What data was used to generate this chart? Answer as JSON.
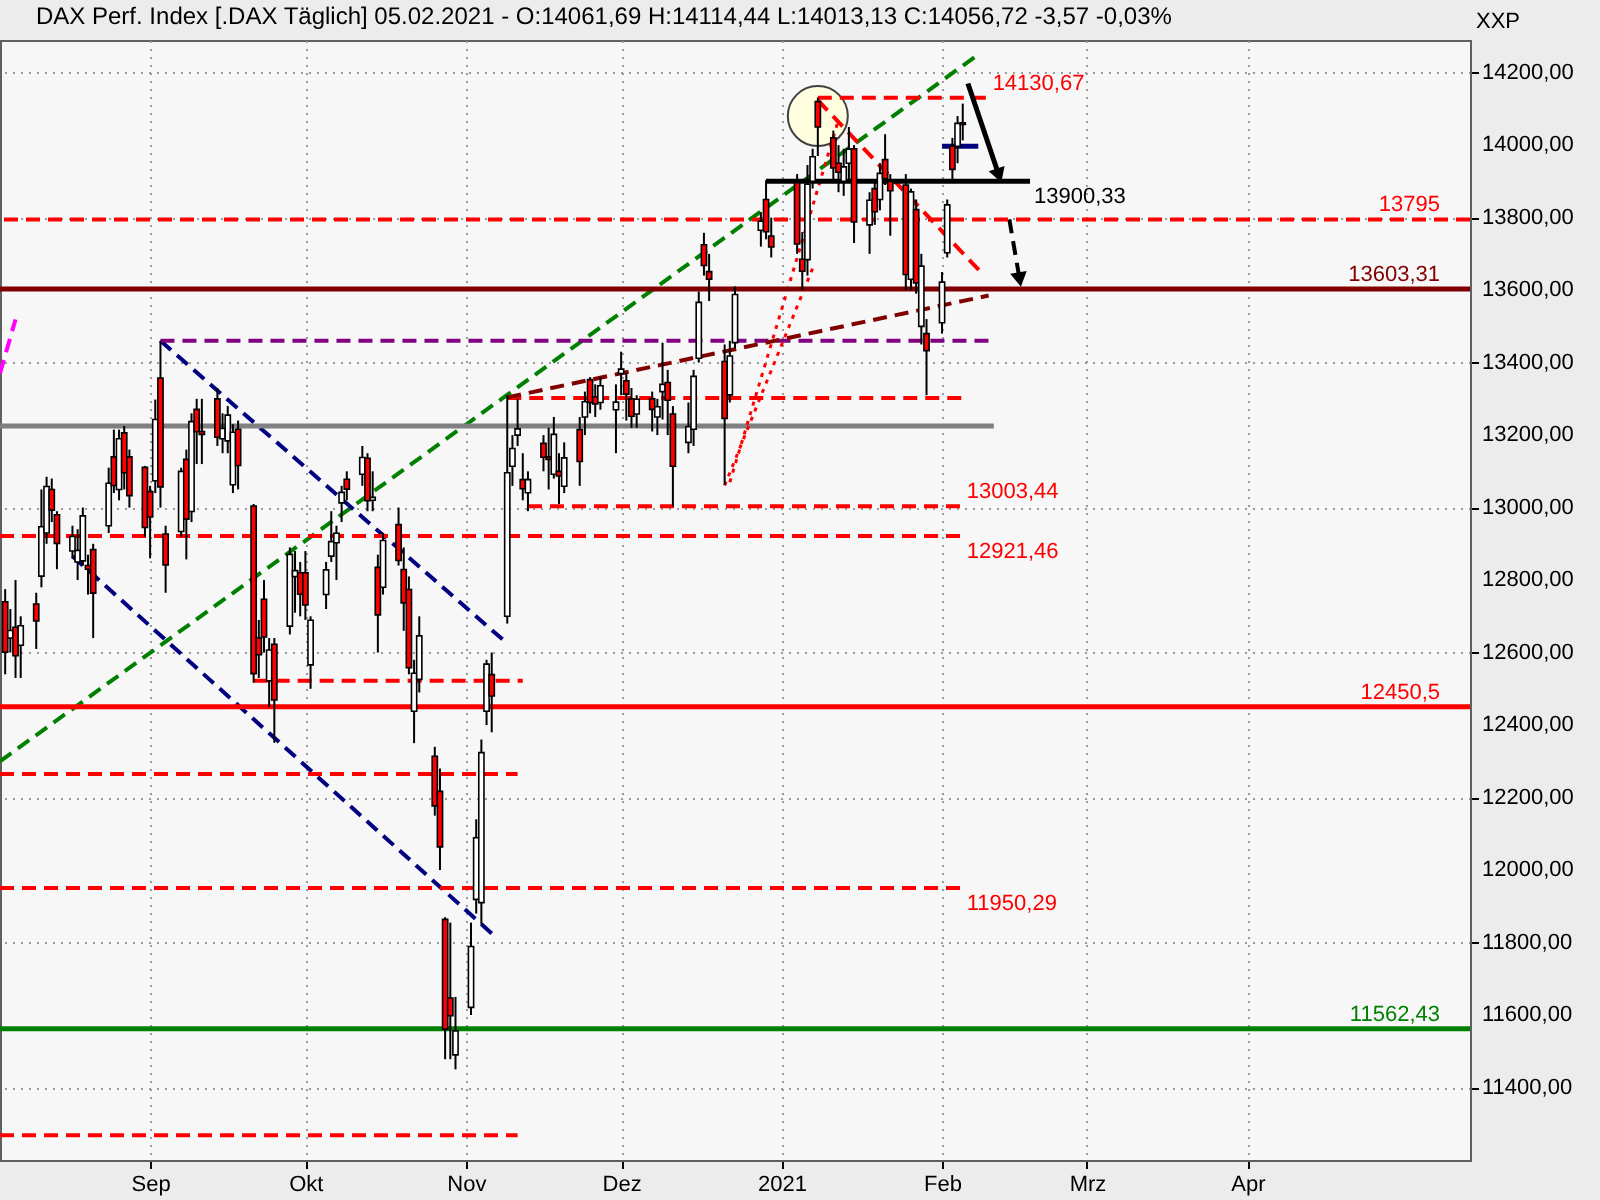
{
  "chart_data": {
    "type": "candlestick",
    "title": "DAX Perf. Index [.DAX Täglich] 05.02.2021 - O:14061,69 H:14114,44 L:14013,13 C:14056,72 -3,57 -0,03%",
    "ylabel": "XXP",
    "x": [
      "2020-08-04",
      "2020-08-05",
      "2020-08-06",
      "2020-08-07",
      "2020-08-10",
      "2020-08-11",
      "2020-08-12",
      "2020-08-13",
      "2020-08-14",
      "2020-08-17",
      "2020-08-18",
      "2020-08-19",
      "2020-08-20",
      "2020-08-21",
      "2020-08-24",
      "2020-08-25",
      "2020-08-26",
      "2020-08-27",
      "2020-08-28",
      "2020-08-31",
      "2020-09-01",
      "2020-09-02",
      "2020-09-03",
      "2020-09-04",
      "2020-09-07",
      "2020-09-08",
      "2020-09-09",
      "2020-09-10",
      "2020-09-11",
      "2020-09-14",
      "2020-09-15",
      "2020-09-16",
      "2020-09-17",
      "2020-09-18",
      "2020-09-21",
      "2020-09-22",
      "2020-09-23",
      "2020-09-24",
      "2020-09-25",
      "2020-09-28",
      "2020-09-29",
      "2020-09-30",
      "2020-10-01",
      "2020-10-02",
      "2020-10-05",
      "2020-10-06",
      "2020-10-07",
      "2020-10-08",
      "2020-10-09",
      "2020-10-12",
      "2020-10-13",
      "2020-10-14",
      "2020-10-15",
      "2020-10-16",
      "2020-10-19",
      "2020-10-20",
      "2020-10-21",
      "2020-10-22",
      "2020-10-23",
      "2020-10-26",
      "2020-10-27",
      "2020-10-28",
      "2020-10-29",
      "2020-10-30",
      "2020-11-02",
      "2020-11-03",
      "2020-11-04",
      "2020-11-05",
      "2020-11-06",
      "2020-11-09",
      "2020-11-10",
      "2020-11-11",
      "2020-11-12",
      "2020-11-13",
      "2020-11-16",
      "2020-11-17",
      "2020-11-18",
      "2020-11-19",
      "2020-11-20",
      "2020-11-23",
      "2020-11-24",
      "2020-11-25",
      "2020-11-26",
      "2020-11-27",
      "2020-11-30",
      "2020-12-01",
      "2020-12-02",
      "2020-12-03",
      "2020-12-04",
      "2020-12-07",
      "2020-12-08",
      "2020-12-09",
      "2020-12-10",
      "2020-12-11",
      "2020-12-14",
      "2020-12-15",
      "2020-12-16",
      "2020-12-17",
      "2020-12-18",
      "2020-12-21",
      "2020-12-22",
      "2020-12-23",
      "2020-12-28",
      "2020-12-29",
      "2020-12-30",
      "2021-01-04",
      "2021-01-05",
      "2021-01-06",
      "2021-01-07",
      "2021-01-08",
      "2021-01-11",
      "2021-01-12",
      "2021-01-13",
      "2021-01-14",
      "2021-01-15",
      "2021-01-18",
      "2021-01-19",
      "2021-01-20",
      "2021-01-21",
      "2021-01-22",
      "2021-01-25",
      "2021-01-26",
      "2021-01-27",
      "2021-01-28",
      "2021-01-29",
      "2021-02-01",
      "2021-02-02",
      "2021-02-03",
      "2021-02-04",
      "2021-02-05"
    ],
    "ohlc": [
      [
        12740,
        12775,
        12540,
        12601
      ],
      [
        12640,
        12720,
        12600,
        12661
      ],
      [
        12670,
        12800,
        12530,
        12591
      ],
      [
        12620,
        12700,
        12530,
        12674
      ],
      [
        12734,
        12765,
        12610,
        12687
      ],
      [
        12811,
        13050,
        12780,
        12947
      ],
      [
        12930,
        13085,
        12900,
        13058
      ],
      [
        13050,
        13080,
        12960,
        12993
      ],
      [
        12980,
        12990,
        12830,
        12901
      ],
      [
        12880,
        12950,
        12860,
        12920
      ],
      [
        12850,
        12940,
        12800,
        12882
      ],
      [
        12853,
        13000,
        12840,
        12977
      ],
      [
        12840,
        12870,
        12760,
        12830
      ],
      [
        12884,
        12900,
        12640,
        12764
      ],
      [
        12950,
        13110,
        12930,
        13067
      ],
      [
        13140,
        13215,
        13040,
        13061
      ],
      [
        13050,
        13215,
        13020,
        13190
      ],
      [
        13206,
        13225,
        13050,
        13096
      ],
      [
        13140,
        13160,
        13000,
        13033
      ],
      [
        13111,
        13115,
        12920,
        12945
      ],
      [
        13044,
        13060,
        12860,
        12974
      ],
      [
        13074,
        13298,
        13040,
        13243
      ],
      [
        13357,
        13460,
        13000,
        13057
      ],
      [
        12927,
        12950,
        12765,
        12842
      ],
      [
        12934,
        13110,
        12920,
        13100
      ],
      [
        13133,
        13160,
        12857,
        12968
      ],
      [
        12989,
        13260,
        12960,
        13237
      ],
      [
        13271,
        13300,
        13120,
        13209
      ],
      [
        13210,
        13300,
        13120,
        13202
      ],
      [
        13300,
        13330,
        13170,
        13194
      ],
      [
        13190,
        13260,
        13150,
        13218
      ],
      [
        13184,
        13280,
        13150,
        13255
      ],
      [
        13063,
        13230,
        13040,
        13208
      ],
      [
        13216,
        13240,
        13050,
        13116
      ],
      [
        13004,
        13010,
        12517,
        12542
      ],
      [
        12640,
        12690,
        12530,
        12594
      ],
      [
        12747,
        12800,
        12600,
        12643
      ],
      [
        12522,
        12640,
        12450,
        12607
      ],
      [
        12623,
        12640,
        12351,
        12469
      ],
      [
        12673,
        12890,
        12650,
        12871
      ],
      [
        12810,
        12880,
        12710,
        12826
      ],
      [
        12820,
        12850,
        12700,
        12761
      ],
      [
        12820,
        12880,
        12690,
        12731
      ],
      [
        12566,
        12700,
        12500,
        12689
      ],
      [
        12760,
        12850,
        12720,
        12828
      ],
      [
        12866,
        12990,
        12850,
        12906
      ],
      [
        12903,
        12950,
        12800,
        12929
      ],
      [
        13013,
        13060,
        12960,
        13042
      ],
      [
        13078,
        13100,
        13020,
        13051
      ],
      [
        13092,
        13170,
        13060,
        13138
      ],
      [
        13136,
        13150,
        12990,
        13019
      ],
      [
        13020,
        13100,
        12990,
        13028
      ],
      [
        12835,
        12870,
        12600,
        12704
      ],
      [
        12780,
        12930,
        12760,
        12909
      ],
      [
        12953,
        13000,
        12840,
        12854
      ],
      [
        12829,
        12890,
        12660,
        12737
      ],
      [
        12774,
        12810,
        12540,
        12558
      ],
      [
        12438,
        12580,
        12350,
        12543
      ],
      [
        12526,
        12700,
        12490,
        12646
      ],
      [
        12314,
        12340,
        12150,
        12177
      ],
      [
        12217,
        12280,
        12000,
        12064
      ],
      [
        11864,
        11870,
        11478,
        11561
      ],
      [
        11647,
        11855,
        11478,
        11598
      ],
      [
        11490,
        11650,
        11450,
        11556
      ],
      [
        11621,
        11855,
        11600,
        11789
      ],
      [
        11919,
        12140,
        11880,
        12089
      ],
      [
        11910,
        12360,
        11850,
        12324
      ],
      [
        12438,
        12580,
        12400,
        12568
      ],
      [
        12539,
        12600,
        12380,
        12480
      ],
      [
        12700,
        13309,
        12680,
        13096
      ],
      [
        13114,
        13200,
        13060,
        13163
      ],
      [
        13200,
        13300,
        13170,
        13217
      ],
      [
        13077,
        13150,
        13020,
        13052
      ],
      [
        13041,
        13100,
        12990,
        13077
      ],
      [
        13177,
        13200,
        13100,
        13139
      ],
      [
        13140,
        13220,
        13050,
        13133
      ],
      [
        13092,
        13250,
        13080,
        13202
      ],
      [
        13100,
        13150,
        13010,
        13087
      ],
      [
        13059,
        13180,
        13040,
        13137
      ],
      [
        13215,
        13250,
        13060,
        13127
      ],
      [
        13250,
        13320,
        13200,
        13292
      ],
      [
        13353,
        13360,
        13260,
        13290
      ],
      [
        13305,
        13340,
        13250,
        13286
      ],
      [
        13290,
        13360,
        13270,
        13336
      ],
      [
        13270,
        13340,
        13150,
        13291
      ],
      [
        13370,
        13430,
        13310,
        13382
      ],
      [
        13350,
        13370,
        13240,
        13313
      ],
      [
        13300,
        13330,
        13220,
        13252
      ],
      [
        13258,
        13310,
        13220,
        13299
      ],
      [
        13300,
        13320,
        13210,
        13271
      ],
      [
        13250,
        13300,
        13200,
        13278
      ],
      [
        13320,
        13455,
        13243,
        13340
      ],
      [
        13345,
        13380,
        13200,
        13296
      ],
      [
        13258,
        13280,
        13003,
        13114
      ],
      [
        13180,
        13290,
        13150,
        13223
      ],
      [
        13216,
        13380,
        13170,
        13362
      ],
      [
        13412,
        13596,
        13400,
        13566
      ],
      [
        13725,
        13758,
        13640,
        13668
      ],
      [
        13651,
        13700,
        13570,
        13630
      ],
      [
        13403,
        13450,
        13063,
        13246
      ],
      [
        13311,
        13460,
        13290,
        13418
      ],
      [
        13455,
        13610,
        13440,
        13588
      ],
      [
        13765,
        13815,
        13720,
        13790
      ],
      [
        13850,
        13903,
        13740,
        13761
      ],
      [
        13749,
        13800,
        13690,
        13719
      ],
      [
        13896,
        13920,
        13700,
        13727
      ],
      [
        13685,
        13760,
        13600,
        13652
      ],
      [
        13684,
        13945,
        13640,
        13892
      ],
      [
        13900,
        13990,
        13880,
        13968
      ],
      [
        14120,
        14131,
        13970,
        14050
      ],
      [
        14020,
        14040,
        13900,
        13937
      ],
      [
        13950,
        14000,
        13870,
        13925
      ],
      [
        13900,
        13990,
        13860,
        13940
      ],
      [
        13950,
        14050,
        13900,
        13989
      ],
      [
        13990,
        14000,
        13730,
        13788
      ],
      [
        13780,
        13870,
        13700,
        13848
      ],
      [
        13880,
        13900,
        13780,
        13816
      ],
      [
        13850,
        13950,
        13820,
        13922
      ],
      [
        13960,
        14030,
        13890,
        13907
      ],
      [
        13900,
        13920,
        13750,
        13874
      ],
      [
        13890,
        13920,
        13600,
        13643
      ],
      [
        13630,
        13880,
        13600,
        13871
      ],
      [
        13822,
        13850,
        13590,
        13620
      ],
      [
        13500,
        13700,
        13450,
        13666
      ],
      [
        13480,
        13520,
        13310,
        13433
      ],
      [
        13510,
        13650,
        13480,
        13622
      ],
      [
        13703,
        13850,
        13690,
        13835
      ],
      [
        13997,
        14020,
        13900,
        13933
      ],
      [
        13997,
        14080,
        13950,
        14060
      ],
      [
        14061.69,
        14114.44,
        14013.13,
        14056.72
      ]
    ],
    "colors": [
      "#ff0000",
      "#ffffff",
      "#ff0000",
      "#ffffff",
      "#ff0000",
      "#ffffff",
      "#ffffff",
      "#ff0000",
      "#ff0000",
      "#ffffff",
      "#ffffff",
      "#ffffff",
      "#ff0000",
      "#ff0000",
      "#ffffff",
      "#ff0000",
      "#ffffff",
      "#ff0000",
      "#ff0000",
      "#ff0000",
      "#ff0000",
      "#ffffff",
      "#ff0000",
      "#ff0000",
      "#ffffff",
      "#ff0000",
      "#ffffff",
      "#ff0000",
      "#ff0000",
      "#ff0000",
      "#ffffff",
      "#ffffff",
      "#ffffff",
      "#ff0000",
      "#ff0000",
      "#ff0000",
      "#ff0000",
      "#ffffff",
      "#ff0000",
      "#ffffff",
      "#ffffff",
      "#ff0000",
      "#ff0000",
      "#ffffff",
      "#ffffff",
      "#ffffff",
      "#ffffff",
      "#ffffff",
      "#ff0000",
      "#ffffff",
      "#ff0000",
      "#ffffff",
      "#ff0000",
      "#ffffff",
      "#ff0000",
      "#ff0000",
      "#ff0000",
      "#ffffff",
      "#ffffff",
      "#ff0000",
      "#ff0000",
      "#ff0000",
      "#ff0000",
      "#ffffff",
      "#ffffff",
      "#ffffff",
      "#ffffff",
      "#ffffff",
      "#ff0000",
      "#ffffff",
      "#ffffff",
      "#ffffff",
      "#ff0000",
      "#ffffff",
      "#ff0000",
      "#ff0000",
      "#ffffff",
      "#ff0000",
      "#ffffff",
      "#ff0000",
      "#ffffff",
      "#ff0000",
      "#ff0000",
      "#ffffff",
      "#ffffff",
      "#ffffff",
      "#ff0000",
      "#ff0000",
      "#ffffff",
      "#ff0000",
      "#ffffff",
      "#ffffff",
      "#ff0000",
      "#ff0000",
      "#ffffff",
      "#ffffff",
      "#ffffff",
      "#ff0000",
      "#ff0000",
      "#ff0000",
      "#ffffff",
      "#ffffff",
      "#ffffff",
      "#ff0000",
      "#ff0000",
      "#ff0000",
      "#ff0000",
      "#ffffff",
      "#ffffff",
      "#ff0000",
      "#ff0000",
      "#ff0000",
      "#ffffff",
      "#ffffff",
      "#ff0000",
      "#ffffff",
      "#ff0000",
      "#ffffff",
      "#ff0000",
      "#ff0000",
      "#ff0000",
      "#ffffff",
      "#ff0000",
      "#ffffff",
      "#ff0000",
      "#ffffff",
      "#ffffff",
      "#ff0000",
      "#ffffff",
      "#ff0000"
    ],
    "xlim": [
      "2020-08-03",
      "2021-05-14"
    ],
    "xticks": [
      {
        "value": "2020-09-01",
        "label": "Sep"
      },
      {
        "value": "2020-10-01",
        "label": "Okt"
      },
      {
        "value": "2020-11-01",
        "label": "Nov"
      },
      {
        "value": "2020-12-01",
        "label": "Dez"
      },
      {
        "value": "2021-01-01",
        "label": "2021"
      },
      {
        "value": "2021-02-01",
        "label": "Feb"
      },
      {
        "value": "2021-03-01",
        "label": "Mrz"
      },
      {
        "value": "2021-04-01",
        "label": "Apr"
      }
    ],
    "ylim": [
      11200,
      14290
    ],
    "yticks": [
      {
        "value": 11400,
        "label": "11400,00"
      },
      {
        "value": 11600,
        "label": "11600,00"
      },
      {
        "value": 11800,
        "label": "11800,00"
      },
      {
        "value": 12000,
        "label": "12000,00"
      },
      {
        "value": 12200,
        "label": "12200,00"
      },
      {
        "value": 12400,
        "label": "12400,00"
      },
      {
        "value": 12600,
        "label": "12600,00"
      },
      {
        "value": 12800,
        "label": "12800,00"
      },
      {
        "value": 13000,
        "label": "13000,00"
      },
      {
        "value": 13200,
        "label": "13200,00"
      },
      {
        "value": 13400,
        "label": "13400,00"
      },
      {
        "value": 13600,
        "label": "13600,00"
      },
      {
        "value": 13800,
        "label": "13800,00"
      },
      {
        "value": 14000,
        "label": "14000,00"
      },
      {
        "value": 14200,
        "label": "14200,00"
      }
    ],
    "grid": true,
    "ref_lines": [
      {
        "axis": "y",
        "value": 13795,
        "label": "13795",
        "color": "#ff0000",
        "line_style": "dashed"
      },
      {
        "axis": "y",
        "value": 13603.31,
        "label": "13603,31",
        "color": "#800000",
        "line_style": "solid"
      },
      {
        "axis": "y",
        "value": 12450.5,
        "label": "12450,5",
        "color": "#ff0000",
        "line_style": "solid"
      },
      {
        "axis": "y",
        "value": 11562.43,
        "label": "11562,43",
        "color": "#008000",
        "line_style": "solid"
      }
    ],
    "series": [
      {
        "type": "scatter",
        "x": [
          "2021-01-08"
        ],
        "values": [
          14080
        ],
        "color": "#ffffe0",
        "marker": "circle"
      },
      {
        "type": "line",
        "x": [
          "2020-08-03",
          "2021-02-08"
        ],
        "values": [
          12300,
          14250
        ],
        "color": "#008000",
        "line_style": "dashed"
      },
      {
        "type": "line",
        "x": [
          "2020-09-03",
          "2020-11-09"
        ],
        "values": [
          13460,
          12625
        ],
        "color": "#000080",
        "line_style": "dashed"
      },
      {
        "type": "line",
        "x": [
          "2020-08-17",
          "2020-11-06"
        ],
        "values": [
          12866,
          11825
        ],
        "color": "#000080",
        "line_style": "dashed"
      },
      {
        "type": "line",
        "x": [
          "2020-09-03",
          "2021-02-11"
        ],
        "values": [
          13460,
          13460
        ],
        "color": "#800080",
        "line_style": "dashed"
      },
      {
        "type": "line",
        "x": [
          "2020-08-03",
          "2021-02-11"
        ],
        "values": [
          13225,
          13225
        ],
        "color": "#808080",
        "line_style": "solid"
      },
      {
        "type": "line",
        "x": [
          "2020-11-09",
          "2021-02-05"
        ],
        "values": [
          13302,
          13302
        ],
        "color": "#ff0000",
        "line_style": "dashed"
      },
      {
        "type": "line",
        "x": [
          "2020-11-09",
          "2021-02-10"
        ],
        "values": [
          13304,
          13585
        ],
        "color": "#800000",
        "line_style": "dashed"
      },
      {
        "type": "line",
        "x": [
          "2020-09-21",
          "2020-11-12"
        ],
        "values": [
          12522,
          12522
        ],
        "color": "#ff0000",
        "line_style": "dashed"
      },
      {
        "type": "line",
        "x": [
          "2020-08-03",
          "2020-11-11"
        ],
        "values": [
          12265,
          12265
        ],
        "color": "#ff0000",
        "line_style": "dashed"
      },
      {
        "type": "line",
        "x": [
          "2020-08-03",
          "2020-11-11"
        ],
        "values": [
          11268,
          11268
        ],
        "color": "#ff0000",
        "line_style": "dashed"
      },
      {
        "type": "line",
        "x": [
          "2021-01-08",
          "2021-02-09"
        ],
        "values": [
          14124,
          13642
        ],
        "color": "#ff0000",
        "line_style": "dashed"
      },
      {
        "type": "line",
        "x": [
          "2020-12-21",
          "2021-01-07"
        ],
        "values": [
          13061,
          13660
        ],
        "color": "#ff0000",
        "line_style": "dotted"
      },
      {
        "type": "line",
        "x": [
          "2020-12-22",
          "2021-01-12"
        ],
        "values": [
          13070,
          14070
        ],
        "color": "#ff0000",
        "line_style": "dotted"
      },
      {
        "type": "line",
        "x": [
          "2020-08-03",
          "2020-08-06"
        ],
        "values": [
          13370,
          13519
        ],
        "color": "#ff00ff",
        "line_style": "dashed"
      },
      {
        "type": "line",
        "x": [
          "2021-02-01",
          "2021-02-08"
        ],
        "values": [
          13997,
          13997
        ],
        "color": "#000080",
        "line_style": "solid"
      },
      {
        "name": "14130,67",
        "type": "line",
        "x": [
          "2021-01-08",
          "2021-02-10"
        ],
        "values": [
          14130.67,
          14130.67
        ],
        "color": "#ff0000",
        "line_style": "dashed"
      },
      {
        "name": "13900,33",
        "type": "line",
        "x": [
          "2020-12-29",
          "2021-02-18"
        ],
        "values": [
          13900.33,
          13900.33
        ],
        "color": "#000000",
        "line_style": "solid"
      },
      {
        "name": "13003,44",
        "type": "line",
        "x": [
          "2020-11-13",
          "2021-02-05"
        ],
        "values": [
          13003.44,
          13003.44
        ],
        "color": "#ff0000",
        "line_style": "dashed"
      },
      {
        "name": "12921,46",
        "type": "line",
        "x": [
          "2020-08-03",
          "2021-02-05"
        ],
        "values": [
          12921.46,
          12921.46
        ],
        "color": "#ff0000",
        "line_style": "dashed"
      },
      {
        "name": "11950,29",
        "type": "line",
        "x": [
          "2020-08-03",
          "2021-02-05"
        ],
        "values": [
          11950.29,
          11950.29
        ],
        "color": "#ff0000",
        "line_style": "dashed"
      },
      {
        "type": "line",
        "x": [
          "2021-02-06",
          "2021-02-12"
        ],
        "values": [
          14170,
          13916
        ],
        "color": "#000000",
        "line_style": "solid",
        "marker": "triangle"
      },
      {
        "type": "line",
        "x": [
          "2021-02-14",
          "2021-02-16"
        ],
        "values": [
          13795,
          13629
        ],
        "color": "#000000",
        "line_style": "dashed",
        "marker": "triangle"
      }
    ]
  }
}
